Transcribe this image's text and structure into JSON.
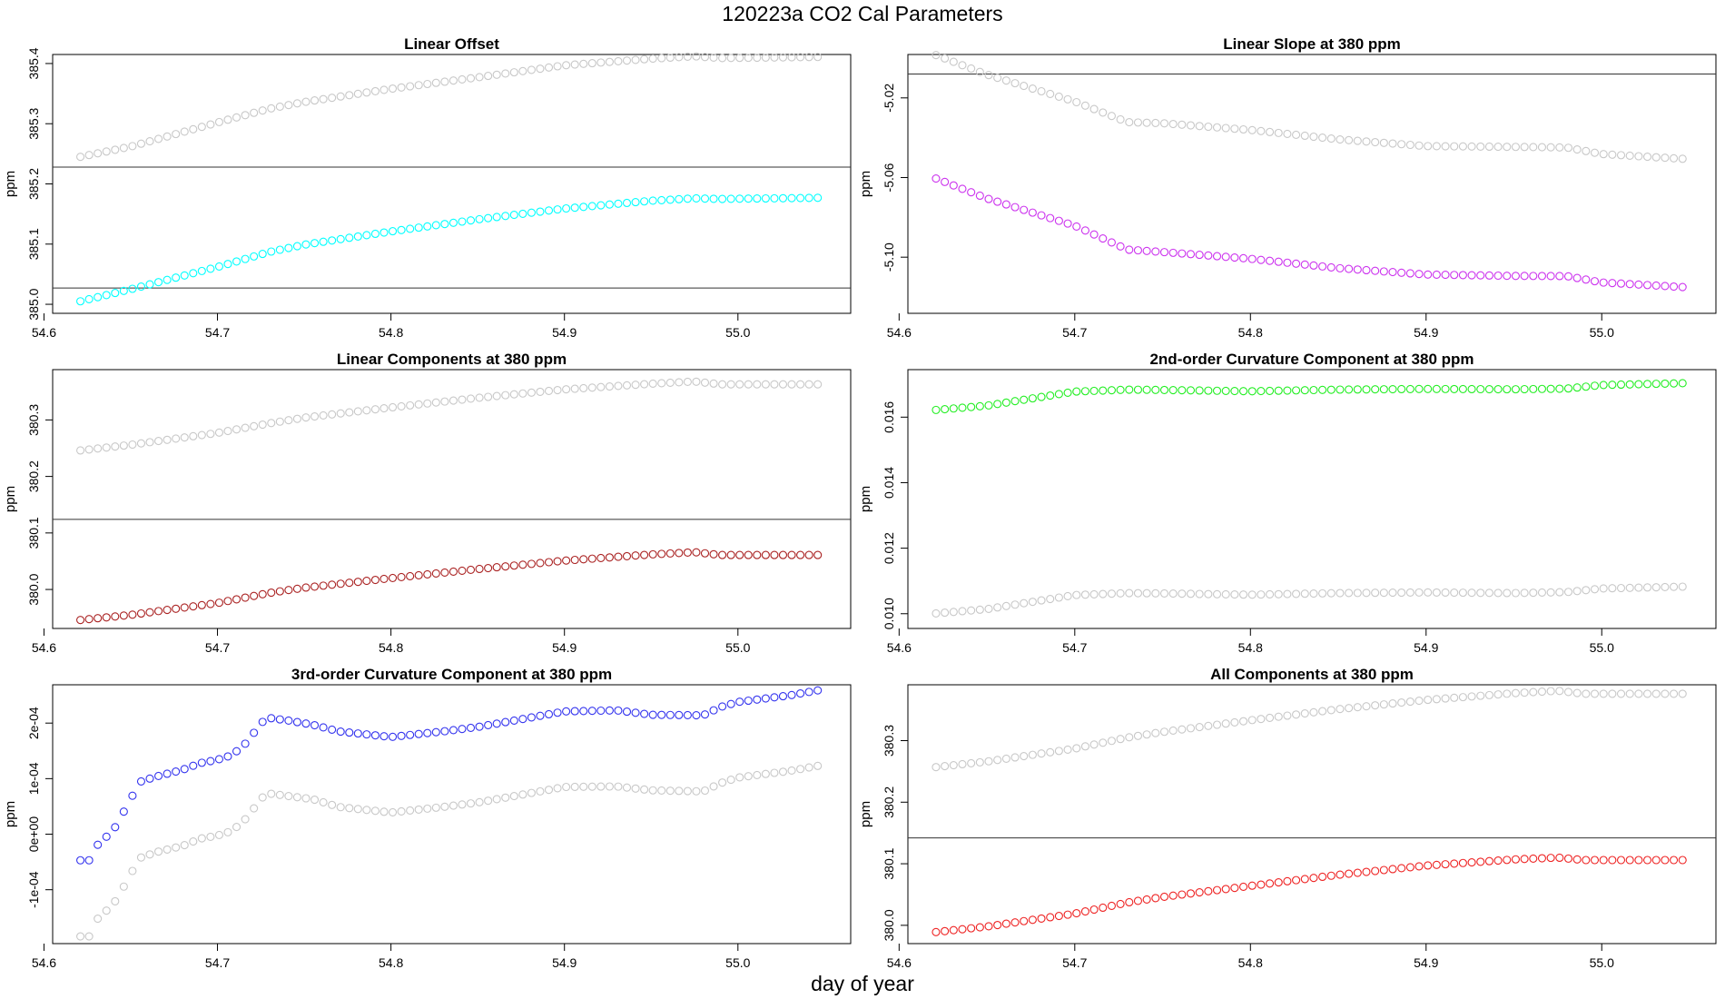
{
  "figure": {
    "title": "120223a   CO2 Cal Parameters",
    "xlabel": "day of year"
  },
  "chart_data": [
    {
      "id": "p1",
      "type": "scatter",
      "title": "Linear Offset",
      "ylabel": "ppm",
      "xlim": [
        54.605,
        55.065
      ],
      "ylim": [
        384.985,
        385.415
      ],
      "xticks": [
        "54.6",
        "54.7",
        "54.8",
        "54.9",
        "55.0"
      ],
      "yticks": [
        "385.0",
        "385.1",
        "385.2",
        "385.3",
        "385.4"
      ],
      "hlines": [
        385.027,
        385.228
      ],
      "x": {
        "start": 54.621,
        "step": 0.005,
        "count": 86
      },
      "series": [
        {
          "name": "grey",
          "color": "#c8c8c8",
          "knots": [
            [
              54.621,
              385.245
            ],
            [
              54.65,
              385.262
            ],
            [
              54.7,
              385.302
            ],
            [
              54.73,
              385.325
            ],
            [
              54.75,
              385.336
            ],
            [
              54.8,
              385.358
            ],
            [
              54.85,
              385.377
            ],
            [
              54.9,
              385.397
            ],
            [
              54.95,
              385.408
            ],
            [
              54.975,
              385.412
            ],
            [
              54.99,
              385.409
            ],
            [
              55.05,
              385.411
            ]
          ]
        },
        {
          "name": "cyan",
          "color": "#00ffff",
          "knots": [
            [
              54.621,
              385.005
            ],
            [
              54.65,
              385.025
            ],
            [
              54.7,
              385.062
            ],
            [
              54.73,
              385.087
            ],
            [
              54.75,
              385.099
            ],
            [
              54.8,
              385.121
            ],
            [
              54.85,
              385.141
            ],
            [
              54.9,
              385.159
            ],
            [
              54.95,
              385.172
            ],
            [
              54.975,
              385.176
            ],
            [
              54.99,
              385.175
            ],
            [
              55.05,
              385.177
            ]
          ]
        }
      ]
    },
    {
      "id": "p2",
      "type": "scatter",
      "title": "Linear Slope at 380 ppm",
      "ylabel": "ppm",
      "xlim": [
        54.605,
        55.065
      ],
      "ylim": [
        -5.1282,
        -4.9982
      ],
      "xticks": [
        "54.6",
        "54.7",
        "54.8",
        "54.9",
        "55.0"
      ],
      "yticks": [
        "-5.02",
        "-5.06",
        "-5.10"
      ],
      "ytickvals": [
        -5.02,
        -5.06,
        -5.1
      ],
      "hlines": [
        -5.008
      ],
      "x": {
        "start": 54.621,
        "step": 0.005,
        "count": 86
      },
      "series": [
        {
          "name": "grey",
          "color": "#c8c8c8",
          "knots": [
            [
              54.621,
              -4.9985
            ],
            [
              54.65,
              -5.0083
            ],
            [
              54.7,
              -5.0218
            ],
            [
              54.73,
              -5.0322
            ],
            [
              54.75,
              -5.0327
            ],
            [
              54.8,
              -5.0361
            ],
            [
              54.85,
              -5.0408
            ],
            [
              54.9,
              -5.0442
            ],
            [
              54.95,
              -5.0446
            ],
            [
              54.98,
              -5.0449
            ],
            [
              55.0,
              -5.0482
            ],
            [
              55.05,
              -5.0508
            ]
          ]
        },
        {
          "name": "purple",
          "color": "#cc33ee",
          "knots": [
            [
              54.621,
              -5.0605
            ],
            [
              54.65,
              -5.0705
            ],
            [
              54.7,
              -5.0842
            ],
            [
              54.73,
              -5.0962
            ],
            [
              54.75,
              -5.0974
            ],
            [
              54.8,
              -5.1008
            ],
            [
              54.85,
              -5.1055
            ],
            [
              54.9,
              -5.1087
            ],
            [
              54.95,
              -5.1094
            ],
            [
              54.98,
              -5.1095
            ],
            [
              55.0,
              -5.1127
            ],
            [
              55.05,
              -5.1152
            ]
          ]
        }
      ]
    },
    {
      "id": "p3",
      "type": "scatter",
      "title": "Linear Components at 380 ppm",
      "ylabel": "ppm",
      "xlim": [
        54.605,
        55.065
      ],
      "ylim": [
        379.931,
        380.389
      ],
      "xticks": [
        "54.6",
        "54.7",
        "54.8",
        "54.9",
        "55.0"
      ],
      "yticks": [
        "380.0",
        "380.1",
        "380.2",
        "380.3"
      ],
      "ytickvals": [
        380.0,
        380.1,
        380.2,
        380.3
      ],
      "hlines": [
        380.124
      ],
      "x": {
        "start": 54.621,
        "step": 0.005,
        "count": 86
      },
      "series": [
        {
          "name": "grey",
          "color": "#c8c8c8",
          "knots": [
            [
              54.621,
              380.246
            ],
            [
              54.65,
              380.256
            ],
            [
              54.7,
              380.277
            ],
            [
              54.73,
              380.294
            ],
            [
              54.75,
              380.304
            ],
            [
              54.8,
              380.322
            ],
            [
              54.85,
              380.339
            ],
            [
              54.9,
              380.354
            ],
            [
              54.95,
              380.364
            ],
            [
              54.975,
              380.368
            ],
            [
              54.99,
              380.363
            ],
            [
              55.05,
              380.363
            ]
          ]
        },
        {
          "name": "brown",
          "color": "#aa2222",
          "knots": [
            [
              54.621,
              379.946
            ],
            [
              54.65,
              379.955
            ],
            [
              54.7,
              379.976
            ],
            [
              54.73,
              379.994
            ],
            [
              54.75,
              380.003
            ],
            [
              54.8,
              380.02
            ],
            [
              54.85,
              380.036
            ],
            [
              54.9,
              380.051
            ],
            [
              54.95,
              380.062
            ],
            [
              54.975,
              380.066
            ],
            [
              54.99,
              380.061
            ],
            [
              55.05,
              380.061
            ]
          ]
        }
      ]
    },
    {
      "id": "p4",
      "type": "scatter",
      "title": "2nd-order Curvature Component at 380 ppm",
      "ylabel": "ppm",
      "xlim": [
        54.605,
        55.065
      ],
      "ylim": [
        0.00955,
        0.01745
      ],
      "xticks": [
        "54.6",
        "54.7",
        "54.8",
        "54.9",
        "55.0"
      ],
      "yticks": [
        "0.010",
        "0.012",
        "0.014",
        "0.016"
      ],
      "ytickvals": [
        0.01,
        0.012,
        0.014,
        0.016
      ],
      "hlines": [],
      "x": {
        "start": 54.621,
        "step": 0.005,
        "count": 86
      },
      "series": [
        {
          "name": "grey",
          "color": "#c8c8c8",
          "knots": [
            [
              54.621,
              0.01001
            ],
            [
              54.65,
              0.01014
            ],
            [
              54.7,
              0.01057
            ],
            [
              54.73,
              0.01063
            ],
            [
              54.75,
              0.01062
            ],
            [
              54.8,
              0.01058
            ],
            [
              54.85,
              0.01063
            ],
            [
              54.9,
              0.01065
            ],
            [
              54.95,
              0.01063
            ],
            [
              54.98,
              0.01066
            ],
            [
              55.0,
              0.01077
            ],
            [
              55.05,
              0.01083
            ]
          ]
        },
        {
          "name": "green",
          "color": "#22ee22",
          "knots": [
            [
              54.621,
              0.01622
            ],
            [
              54.65,
              0.01635
            ],
            [
              54.7,
              0.01678
            ],
            [
              54.73,
              0.01684
            ],
            [
              54.75,
              0.01683
            ],
            [
              54.8,
              0.01679
            ],
            [
              54.85,
              0.01684
            ],
            [
              54.9,
              0.01686
            ],
            [
              54.95,
              0.01685
            ],
            [
              54.98,
              0.01687
            ],
            [
              55.0,
              0.01698
            ],
            [
              55.05,
              0.01704
            ]
          ]
        }
      ]
    },
    {
      "id": "p5",
      "type": "scatter",
      "title": "3rd-order Curvature Component at 380 ppm",
      "ylabel": "ppm",
      "xlim": [
        54.605,
        55.065
      ],
      "ylim": [
        -0.000197,
        0.000269
      ],
      "xticks": [
        "54.6",
        "54.7",
        "54.8",
        "54.9",
        "55.0"
      ],
      "yticks": [
        "-1e-04",
        "0e+00",
        "1e-04",
        "2e-04"
      ],
      "ytickvals": [
        -0.0001,
        0.0,
        0.0001,
        0.0002
      ],
      "hlines": [],
      "x": {
        "start": 54.621,
        "step": 0.005,
        "count": 86
      },
      "series": [
        {
          "name": "grey",
          "color": "#c8c8c8",
          "knots": [
            [
              54.621,
              -0.000184
            ],
            [
              54.626,
              -0.000184
            ],
            [
              54.63,
              -0.000155
            ],
            [
              54.64,
              -0.000126
            ],
            [
              54.645,
              -0.0001
            ],
            [
              54.65,
              -7.2e-05
            ],
            [
              54.655,
              -4.3e-05
            ],
            [
              54.665,
              -3.2e-05
            ],
            [
              54.68,
              -2.1e-05
            ],
            [
              54.69,
              -8e-06
            ],
            [
              54.7,
              -2.5e-06
            ],
            [
              54.708,
              5.5e-06
            ],
            [
              54.715,
              2.3e-05
            ],
            [
              54.728,
              7.4e-05
            ],
            [
              54.74,
              6.9e-05
            ],
            [
              54.755,
              6.3e-05
            ],
            [
              54.77,
              4.9e-05
            ],
            [
              54.8,
              3.9e-05
            ],
            [
              54.83,
              4.9e-05
            ],
            [
              54.85,
              5.7e-05
            ],
            [
              54.87,
              6.8e-05
            ],
            [
              54.9,
              8.5e-05
            ],
            [
              54.93,
              8.6e-05
            ],
            [
              54.95,
              7.9e-05
            ],
            [
              54.98,
              7.7e-05
            ],
            [
              54.99,
              9.2e-05
            ],
            [
              55.0,
              0.000102
            ],
            [
              55.03,
              0.000114
            ],
            [
              55.048,
              0.000124
            ]
          ]
        },
        {
          "name": "blue",
          "color": "#3333ee",
          "knots": [
            [
              54.621,
              -4.7e-05
            ],
            [
              54.626,
              -4.7e-05
            ],
            [
              54.63,
              -2.2e-05
            ],
            [
              54.64,
              7e-06
            ],
            [
              54.645,
              3.5e-05
            ],
            [
              54.65,
              6.3e-05
            ],
            [
              54.655,
              9.4e-05
            ],
            [
              54.665,
              0.000104
            ],
            [
              54.68,
              0.000116
            ],
            [
              54.69,
              0.000128
            ],
            [
              54.7,
              0.000134
            ],
            [
              54.708,
              0.000142
            ],
            [
              54.715,
              0.000159
            ],
            [
              54.728,
              0.00021
            ],
            [
              54.74,
              0.000205
            ],
            [
              54.755,
              0.000197
            ],
            [
              54.77,
              0.000185
            ],
            [
              54.8,
              0.000175
            ],
            [
              54.83,
              0.000185
            ],
            [
              54.85,
              0.000193
            ],
            [
              54.87,
              0.000204
            ],
            [
              54.9,
              0.000221
            ],
            [
              54.93,
              0.000223
            ],
            [
              54.95,
              0.000215
            ],
            [
              54.98,
              0.000214
            ],
            [
              54.99,
              0.000229
            ],
            [
              55.0,
              0.000238
            ],
            [
              55.03,
              0.00025
            ],
            [
              55.048,
              0.00026
            ]
          ]
        }
      ]
    },
    {
      "id": "p6",
      "type": "scatter",
      "title": "All Components at 380 ppm",
      "ylabel": "ppm",
      "xlim": [
        54.605,
        55.065
      ],
      "ylim": [
        379.9703,
        380.3907
      ],
      "xticks": [
        "54.6",
        "54.7",
        "54.8",
        "54.9",
        "55.0"
      ],
      "yticks": [
        "380.0",
        "380.1",
        "380.2",
        "380.3"
      ],
      "ytickvals": [
        380.0,
        380.1,
        380.2,
        380.3
      ],
      "hlines": [
        380.142
      ],
      "x": {
        "start": 54.621,
        "step": 0.005,
        "count": 86
      },
      "series": [
        {
          "name": "grey",
          "color": "#c8c8c8",
          "knots": [
            [
              54.621,
              380.257
            ],
            [
              54.65,
              380.266
            ],
            [
              54.7,
              380.287
            ],
            [
              54.73,
              380.305
            ],
            [
              54.75,
              380.314
            ],
            [
              54.8,
              380.333
            ],
            [
              54.85,
              380.351
            ],
            [
              54.9,
              380.366
            ],
            [
              54.95,
              380.377
            ],
            [
              54.975,
              380.381
            ],
            [
              54.99,
              380.376
            ],
            [
              55.05,
              380.376
            ]
          ]
        },
        {
          "name": "red",
          "color": "#ee2222",
          "knots": [
            [
              54.621,
              379.989
            ],
            [
              54.65,
              379.998
            ],
            [
              54.7,
              380.019
            ],
            [
              54.73,
              380.037
            ],
            [
              54.75,
              380.046
            ],
            [
              54.8,
              380.064
            ],
            [
              54.85,
              380.082
            ],
            [
              54.9,
              380.097
            ],
            [
              54.95,
              380.107
            ],
            [
              54.975,
              380.11
            ],
            [
              54.99,
              380.106
            ],
            [
              55.05,
              380.106
            ]
          ]
        }
      ]
    }
  ]
}
